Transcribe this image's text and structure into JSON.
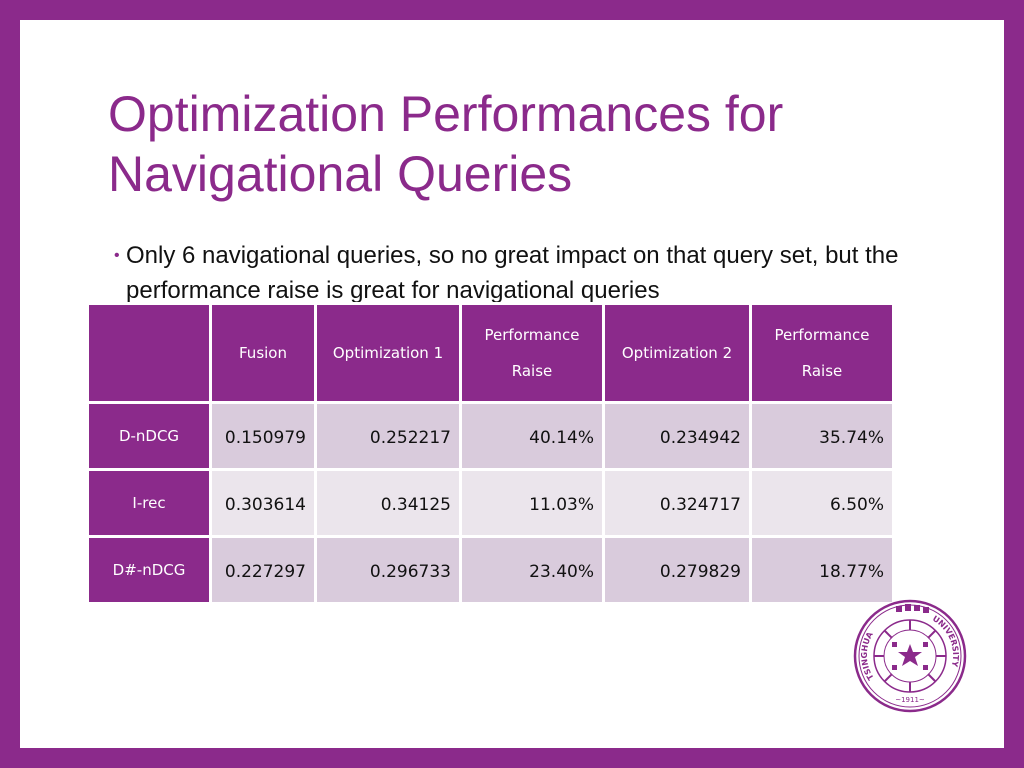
{
  "title": {
    "line1": "Optimization Performances for",
    "line2": "Navigational Queries"
  },
  "bullet": {
    "text": "Only 6 navigational queries, so no great impact on that query set, but the performance raise is great for navigational queries"
  },
  "table": {
    "headers": [
      "",
      "Fusion",
      "Optimization 1",
      "Performance Raise",
      "Optimization 2",
      "Performance Raise"
    ],
    "rows": [
      {
        "label": "D-nDCG",
        "cells": [
          "0.150979",
          "0.252217",
          "40.14%",
          "0.234942",
          "35.74%"
        ]
      },
      {
        "label": "I-rec",
        "cells": [
          "0.303614",
          "0.34125",
          "11.03%",
          "0.324717",
          "6.50%"
        ]
      },
      {
        "label": "D#-nDCG",
        "cells": [
          "0.227297",
          "0.296733",
          "23.40%",
          "0.279829",
          "18.77%"
        ]
      }
    ]
  },
  "logo": {
    "name": "tsinghua-university-seal",
    "text": "TSINGHUA UNIVERSITY 1911"
  },
  "colors": {
    "accent": "#8b2a8b",
    "row_dark": "#d9cbdc",
    "row_light": "#ebe5ec"
  }
}
